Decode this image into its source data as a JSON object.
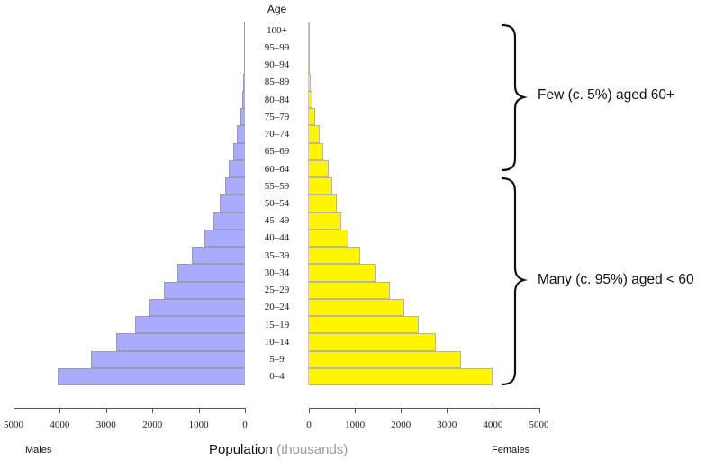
{
  "chart_data": {
    "type": "bar",
    "subtype": "population-pyramid",
    "title": "",
    "center_axis_title": "Age",
    "xlabel": "Population (thousands)",
    "xlabel_main": "Population",
    "xlabel_units": "(thousands)",
    "left_label": "Males",
    "right_label": "Females",
    "xlim_males": [
      5000,
      0
    ],
    "xlim_females": [
      0,
      5000
    ],
    "male_ticks": [
      "5000",
      "4000",
      "3000",
      "2000",
      "1000",
      "0"
    ],
    "female_ticks": [
      "0",
      "1000",
      "2000",
      "3000",
      "4000",
      "5000"
    ],
    "categories": [
      "100+",
      "95-99",
      "90-94",
      "85-89",
      "80-84",
      "75-79",
      "70-74",
      "65-69",
      "60-64",
      "55-59",
      "50-54",
      "45-49",
      "40-44",
      "35-39",
      "30-34",
      "25-29",
      "20-24",
      "15-19",
      "10-14",
      "5-9",
      "0-4"
    ],
    "series": [
      {
        "name": "Males",
        "color": "#aaaaff",
        "values": [
          1,
          3,
          10,
          30,
          60,
          105,
          175,
          260,
          345,
          430,
          540,
          675,
          870,
          1140,
          1450,
          1745,
          2070,
          2380,
          2775,
          3330,
          4040
        ]
      },
      {
        "name": "Females",
        "color": "#fff500",
        "values": [
          1,
          4,
          12,
          40,
          85,
          135,
          230,
          320,
          430,
          510,
          610,
          710,
          850,
          1110,
          1440,
          1760,
          2080,
          2380,
          2760,
          3300,
          3990
        ]
      }
    ],
    "annotations": [
      {
        "text": "Few (c. 5%) aged 60+",
        "spans": [
          "100+",
          "60-64"
        ]
      },
      {
        "text": "Many (c. 95%) aged < 60",
        "spans": [
          "55-59",
          "0-4"
        ]
      }
    ],
    "grid": false,
    "legend": "none"
  },
  "labels": {
    "age": "Age",
    "males": "Males",
    "females": "Females",
    "population": "Population",
    "units": "(thousands)",
    "few": "Few (c. 5%) aged 60+",
    "many": "Many (c. 95%) aged < 60"
  }
}
